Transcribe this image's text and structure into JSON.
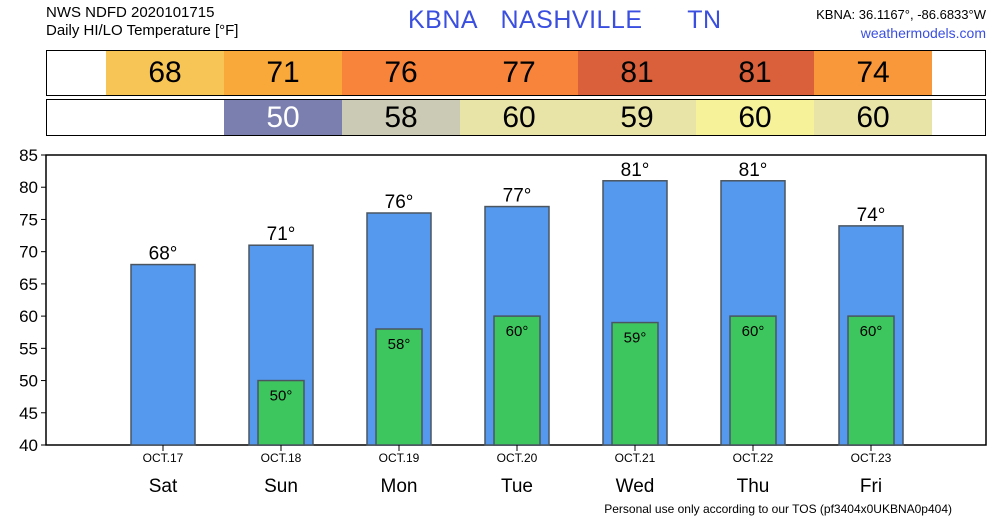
{
  "header": {
    "line1": "NWS NDFD 2020101715",
    "line2": "Daily HI/LO Temperature [°F]",
    "station_id": "KBNA",
    "city": "NASHVILLE",
    "state": "TN",
    "coords": "KBNA: 36.1167°, -86.6833°W",
    "site": "weathermodels.com"
  },
  "colors": {
    "hi_bar": "#5599ee",
    "lo_bar": "#3ec65e",
    "bar_stroke": "#4a5560"
  },
  "hi_strip": [
    {
      "value": "68",
      "color": "#f7c555"
    },
    {
      "value": "71",
      "color": "#f9a93a"
    },
    {
      "value": "76",
      "color": "#f7843a"
    },
    {
      "value": "77",
      "color": "#f7843a"
    },
    {
      "value": "81",
      "color": "#d9603a"
    },
    {
      "value": "81",
      "color": "#d9603a"
    },
    {
      "value": "74",
      "color": "#f9983a"
    }
  ],
  "lo_strip": [
    {
      "value": "",
      "color": "#ffffff"
    },
    {
      "value": "50",
      "color": "#7a7fb0"
    },
    {
      "value": "58",
      "color": "#cbcab5"
    },
    {
      "value": "60",
      "color": "#e8e4a8"
    },
    {
      "value": "59",
      "color": "#e8e4a8"
    },
    {
      "value": "60",
      "color": "#f5f29a"
    },
    {
      "value": "60",
      "color": "#e8e4a8"
    }
  ],
  "chart_data": {
    "type": "bar",
    "categories": [
      "Sat",
      "Sun",
      "Mon",
      "Tue",
      "Wed",
      "Thu",
      "Fri"
    ],
    "dates": [
      "OCT.17",
      "OCT.18",
      "OCT.19",
      "OCT.20",
      "OCT.21",
      "OCT.22",
      "OCT.23"
    ],
    "series": [
      {
        "values": [
          68,
          71,
          76,
          77,
          81,
          81,
          74
        ]
      },
      {
        "values": [
          null,
          50,
          58,
          60,
          59,
          60,
          60
        ]
      }
    ],
    "hi_labels": [
      "68°",
      "71°",
      "76°",
      "77°",
      "81°",
      "81°",
      "74°"
    ],
    "lo_labels": [
      "",
      "50°",
      "58°",
      "60°",
      "59°",
      "60°",
      "60°"
    ],
    "ylim": [
      40,
      85
    ],
    "yticks": [
      40,
      45,
      50,
      55,
      60,
      65,
      70,
      75,
      80,
      85
    ],
    "grid": false
  },
  "footer": "Personal use only according to our TOS (pf3404x0UKBNA0p404)"
}
